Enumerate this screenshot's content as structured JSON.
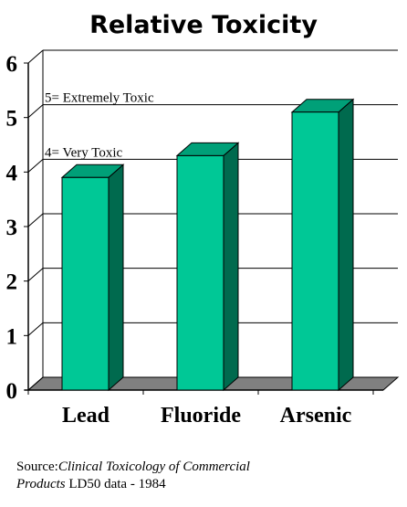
{
  "chart_data": {
    "type": "bar",
    "title": "Relative Toxicity",
    "categories": [
      "Lead",
      "Fluoride",
      "Arsenic"
    ],
    "values": [
      3.9,
      4.3,
      5.1
    ],
    "ylim": [
      0,
      6
    ],
    "yticks": [
      "0",
      "1",
      "2",
      "3",
      "4",
      "5",
      "6"
    ],
    "xlabel": "",
    "ylabel": "",
    "grid": true,
    "three_d": true,
    "annotations": [
      {
        "text": "5= Extremely Toxic",
        "y": 5
      },
      {
        "text": "4= Very Toxic",
        "y": 4
      }
    ],
    "colors": {
      "bar_front": "#00c896",
      "bar_top": "#00a078",
      "bar_side": "#006a4e",
      "floor": "#808080",
      "wall_edge": "#000000"
    }
  },
  "source": {
    "prefix": "Source:",
    "title_part1": "Clinical Toxicology of Commercial",
    "title_part2": "Products",
    "suffix": " LD50 data - 1984"
  }
}
